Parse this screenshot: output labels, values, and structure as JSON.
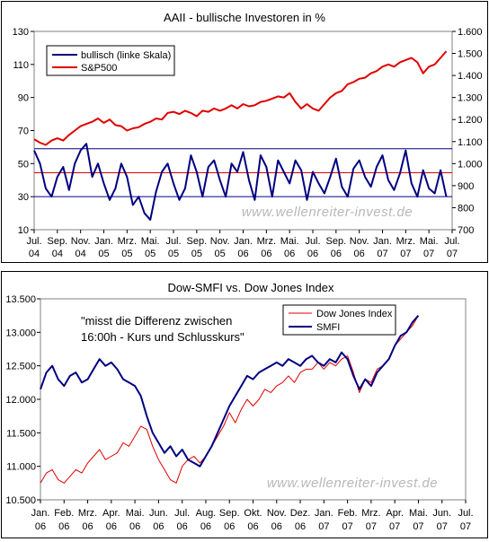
{
  "chart_data": [
    {
      "type": "line",
      "title": "AAII - bullische Investoren in %",
      "watermark": "www.wellenreiter-invest.de",
      "colors": {
        "bullish": "#000080",
        "sp500": "#e00000",
        "upper_line": "#000080",
        "mid_line": "#e00000",
        "lower_line": "#000080"
      },
      "y_left": {
        "min": 10,
        "max": 130,
        "ticks": [
          "130",
          "110",
          "90",
          "70",
          "50",
          "30",
          "10"
        ]
      },
      "y_right": {
        "min": 700,
        "max": 1600,
        "ticks": [
          "1.600",
          "1.500",
          "1.400",
          "1.300",
          "1.200",
          "1.100",
          "1.000",
          "900",
          "800",
          "700"
        ]
      },
      "x_range": [
        0,
        36
      ],
      "x_ticks": [
        {
          "m": "Jul.",
          "y": "04"
        },
        {
          "m": "Sep.",
          "y": "04"
        },
        {
          "m": "Nov.",
          "y": "04"
        },
        {
          "m": "Jan.",
          "y": "05"
        },
        {
          "m": "Mrz.",
          "y": "05"
        },
        {
          "m": "Mai.",
          "y": "05"
        },
        {
          "m": "Jul.",
          "y": "05"
        },
        {
          "m": "Sep.",
          "y": "05"
        },
        {
          "m": "Nov.",
          "y": "05"
        },
        {
          "m": "Jan.",
          "y": "06"
        },
        {
          "m": "Mrz.",
          "y": "06"
        },
        {
          "m": "Mai.",
          "y": "06"
        },
        {
          "m": "Jul.",
          "y": "06"
        },
        {
          "m": "Sep.",
          "y": "06"
        },
        {
          "m": "Nov.",
          "y": "06"
        },
        {
          "m": "Jan.",
          "y": "07"
        },
        {
          "m": "Mrz.",
          "y": "07"
        },
        {
          "m": "Mai.",
          "y": "07"
        },
        {
          "m": "Jul.",
          "y": "07"
        }
      ],
      "horizontal_lines": {
        "upper": 59,
        "mid": 44.5,
        "lower": 30
      },
      "series": [
        {
          "name": "bullisch (linke Skala)",
          "axis": "left",
          "x": [
            0,
            0.5,
            1,
            1.5,
            2,
            2.5,
            3,
            3.5,
            4,
            4.5,
            5,
            5.5,
            6,
            6.5,
            7,
            7.5,
            8,
            8.5,
            9,
            9.5,
            10,
            10.5,
            11,
            11.5,
            12,
            12.5,
            13,
            13.5,
            14,
            14.5,
            15,
            15.5,
            16,
            16.5,
            17,
            17.5,
            18,
            18.5,
            19,
            19.5,
            20,
            20.5,
            21,
            21.5,
            22,
            22.5,
            23,
            23.5,
            24,
            24.5,
            25,
            25.5,
            26,
            26.5,
            27,
            27.5,
            28,
            28.5,
            29,
            29.5,
            30,
            30.5,
            31,
            31.5,
            32,
            32.5,
            33,
            33.5,
            34,
            34.5,
            35,
            35.5
          ],
          "values": [
            58,
            50,
            35,
            30,
            42,
            48,
            34,
            50,
            58,
            62,
            42,
            50,
            38,
            28,
            35,
            50,
            42,
            25,
            30,
            20,
            16,
            33,
            45,
            50,
            38,
            28,
            35,
            55,
            45,
            30,
            48,
            52,
            40,
            30,
            50,
            45,
            57,
            40,
            28,
            55,
            48,
            30,
            52,
            45,
            38,
            52,
            46,
            28,
            45,
            38,
            32,
            42,
            53,
            36,
            30,
            47,
            52,
            42,
            36,
            48,
            55,
            40,
            34,
            44,
            58,
            38,
            30,
            46,
            35,
            32,
            46,
            30
          ]
        },
        {
          "name": "S&P500",
          "axis": "right",
          "x": [
            0,
            0.5,
            1,
            1.5,
            2,
            2.5,
            3,
            3.5,
            4,
            4.5,
            5,
            5.5,
            6,
            6.5,
            7,
            7.5,
            8,
            8.5,
            9,
            9.5,
            10,
            10.5,
            11,
            11.5,
            12,
            12.5,
            13,
            13.5,
            14,
            14.5,
            15,
            15.5,
            16,
            16.5,
            17,
            17.5,
            18,
            18.5,
            19,
            19.5,
            20,
            20.5,
            21,
            21.5,
            22,
            22.5,
            23,
            23.5,
            24,
            24.5,
            25,
            25.5,
            26,
            26.5,
            27,
            27.5,
            28,
            28.5,
            29,
            29.5,
            30,
            30.5,
            31,
            31.5,
            32,
            32.5,
            33,
            33.5,
            34,
            34.5,
            35,
            35.5
          ],
          "values": [
            1110,
            1095,
            1085,
            1105,
            1115,
            1105,
            1130,
            1150,
            1170,
            1180,
            1190,
            1205,
            1185,
            1200,
            1175,
            1170,
            1150,
            1160,
            1165,
            1180,
            1190,
            1205,
            1200,
            1230,
            1235,
            1225,
            1240,
            1230,
            1215,
            1240,
            1235,
            1250,
            1240,
            1250,
            1265,
            1250,
            1270,
            1260,
            1265,
            1280,
            1285,
            1295,
            1305,
            1300,
            1320,
            1280,
            1250,
            1270,
            1250,
            1240,
            1270,
            1300,
            1320,
            1330,
            1360,
            1370,
            1385,
            1390,
            1410,
            1420,
            1440,
            1450,
            1440,
            1460,
            1470,
            1480,
            1460,
            1410,
            1440,
            1450,
            1480,
            1510
          ]
        }
      ]
    },
    {
      "type": "line",
      "title": "Dow-SMFI vs. Dow Jones Index",
      "annotation": "\"misst die Differenz zwischen\n16:00h - Kurs und Schlusskurs\"",
      "watermark": "www.wellenreiter-invest.de",
      "colors": {
        "dow": "#e00000",
        "smfi": "#000080"
      },
      "y": {
        "min": 10500,
        "max": 13500,
        "ticks": [
          "13.500",
          "13.000",
          "12.500",
          "12.000",
          "11.500",
          "11.000",
          "10.500"
        ]
      },
      "x_range": [
        0,
        18
      ],
      "x_ticks": [
        {
          "m": "Jan.",
          "y": "06"
        },
        {
          "m": "Feb.",
          "y": "06"
        },
        {
          "m": "Mrz.",
          "y": "06"
        },
        {
          "m": "Apr.",
          "y": "06"
        },
        {
          "m": "Mai.",
          "y": "06"
        },
        {
          "m": "Jun.",
          "y": "06"
        },
        {
          "m": "Jul.",
          "y": "06"
        },
        {
          "m": "Aug.",
          "y": "06"
        },
        {
          "m": "Sep.",
          "y": "06"
        },
        {
          "m": "Okt.",
          "y": "06"
        },
        {
          "m": "Nov.",
          "y": "06"
        },
        {
          "m": "Dez.",
          "y": "06"
        },
        {
          "m": "Jan.",
          "y": "07"
        },
        {
          "m": "Feb.",
          "y": "07"
        },
        {
          "m": "Mrz.",
          "y": "07"
        },
        {
          "m": "Apr.",
          "y": "07"
        },
        {
          "m": "Mai.",
          "y": "07"
        },
        {
          "m": "Jun.",
          "y": "07"
        },
        {
          "m": "Jul.",
          "y": "07"
        }
      ],
      "series": [
        {
          "name": "Dow Jones Index",
          "x": [
            0,
            0.25,
            0.5,
            0.75,
            1,
            1.25,
            1.5,
            1.75,
            2,
            2.25,
            2.5,
            2.75,
            3,
            3.25,
            3.5,
            3.75,
            4,
            4.25,
            4.5,
            4.75,
            5,
            5.25,
            5.5,
            5.75,
            6,
            6.25,
            6.5,
            6.75,
            7,
            7.25,
            7.5,
            7.75,
            8,
            8.25,
            8.5,
            8.75,
            9,
            9.25,
            9.5,
            9.75,
            10,
            10.25,
            10.5,
            10.75,
            11,
            11.25,
            11.5,
            11.75,
            12,
            12.25,
            12.5,
            12.75,
            13,
            13.25,
            13.5,
            13.75,
            14,
            14.25,
            14.5,
            14.75,
            15,
            15.25,
            15.5,
            15.75,
            16
          ],
          "values": [
            10750,
            10900,
            10950,
            10800,
            10750,
            10850,
            10950,
            10900,
            11050,
            11150,
            11250,
            11100,
            11150,
            11200,
            11350,
            11300,
            11450,
            11600,
            11550,
            11300,
            11100,
            10950,
            10800,
            10750,
            11000,
            11100,
            11150,
            11050,
            11150,
            11300,
            11450,
            11600,
            11800,
            11650,
            11850,
            12000,
            11900,
            12000,
            12150,
            12100,
            12200,
            12250,
            12350,
            12250,
            12400,
            12450,
            12450,
            12550,
            12450,
            12550,
            12500,
            12600,
            12650,
            12400,
            12100,
            12300,
            12250,
            12450,
            12500,
            12600,
            12800,
            12900,
            13000,
            13100,
            13250
          ]
        },
        {
          "name": "SMFI",
          "x": [
            0,
            0.25,
            0.5,
            0.75,
            1,
            1.25,
            1.5,
            1.75,
            2,
            2.25,
            2.5,
            2.75,
            3,
            3.25,
            3.5,
            3.75,
            4,
            4.25,
            4.5,
            4.75,
            5,
            5.25,
            5.5,
            5.75,
            6,
            6.25,
            6.5,
            6.75,
            7,
            7.25,
            7.5,
            7.75,
            8,
            8.25,
            8.5,
            8.75,
            9,
            9.25,
            9.5,
            9.75,
            10,
            10.25,
            10.5,
            10.75,
            11,
            11.25,
            11.5,
            11.75,
            12,
            12.25,
            12.5,
            12.75,
            13,
            13.25,
            13.5,
            13.75,
            14,
            14.25,
            14.5,
            14.75,
            15,
            15.25,
            15.5,
            15.75,
            16
          ],
          "values": [
            12150,
            12400,
            12500,
            12300,
            12200,
            12350,
            12400,
            12250,
            12300,
            12450,
            12600,
            12500,
            12550,
            12450,
            12300,
            12250,
            12200,
            12050,
            11750,
            11500,
            11350,
            11200,
            11300,
            11150,
            11250,
            11100,
            11050,
            11000,
            11150,
            11300,
            11500,
            11700,
            11900,
            12050,
            12200,
            12350,
            12300,
            12400,
            12450,
            12500,
            12550,
            12500,
            12600,
            12550,
            12500,
            12600,
            12650,
            12550,
            12500,
            12600,
            12550,
            12700,
            12600,
            12350,
            12150,
            12300,
            12200,
            12400,
            12500,
            12600,
            12800,
            12950,
            13000,
            13150,
            13250
          ]
        }
      ]
    }
  ]
}
